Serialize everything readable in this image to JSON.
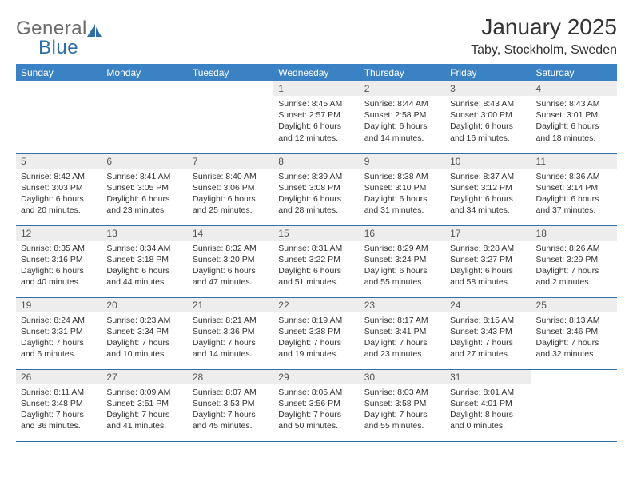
{
  "logo": {
    "part1": "General",
    "part2": "Blue"
  },
  "title": "January 2025",
  "location": "Taby, Stockholm, Sweden",
  "colors": {
    "header_bg": "#3b82c4",
    "header_text": "#ffffff",
    "daynum_bg": "#ededed",
    "rule": "#2f6fa8",
    "body_text": "#333333",
    "logo_gray": "#6b6b6b",
    "logo_blue": "#2f6fa8"
  },
  "font": {
    "family": "Arial",
    "cell_size_pt": 8,
    "daynum_size_pt": 9,
    "header_size_pt": 9,
    "title_size_pt": 21,
    "location_size_pt": 12
  },
  "day_headers": [
    "Sunday",
    "Monday",
    "Tuesday",
    "Wednesday",
    "Thursday",
    "Friday",
    "Saturday"
  ],
  "weeks": [
    [
      {
        "n": "",
        "sunrise": "",
        "sunset": "",
        "daylight": ""
      },
      {
        "n": "",
        "sunrise": "",
        "sunset": "",
        "daylight": ""
      },
      {
        "n": "",
        "sunrise": "",
        "sunset": "",
        "daylight": ""
      },
      {
        "n": "1",
        "sunrise": "Sunrise: 8:45 AM",
        "sunset": "Sunset: 2:57 PM",
        "daylight": "Daylight: 6 hours and 12 minutes."
      },
      {
        "n": "2",
        "sunrise": "Sunrise: 8:44 AM",
        "sunset": "Sunset: 2:58 PM",
        "daylight": "Daylight: 6 hours and 14 minutes."
      },
      {
        "n": "3",
        "sunrise": "Sunrise: 8:43 AM",
        "sunset": "Sunset: 3:00 PM",
        "daylight": "Daylight: 6 hours and 16 minutes."
      },
      {
        "n": "4",
        "sunrise": "Sunrise: 8:43 AM",
        "sunset": "Sunset: 3:01 PM",
        "daylight": "Daylight: 6 hours and 18 minutes."
      }
    ],
    [
      {
        "n": "5",
        "sunrise": "Sunrise: 8:42 AM",
        "sunset": "Sunset: 3:03 PM",
        "daylight": "Daylight: 6 hours and 20 minutes."
      },
      {
        "n": "6",
        "sunrise": "Sunrise: 8:41 AM",
        "sunset": "Sunset: 3:05 PM",
        "daylight": "Daylight: 6 hours and 23 minutes."
      },
      {
        "n": "7",
        "sunrise": "Sunrise: 8:40 AM",
        "sunset": "Sunset: 3:06 PM",
        "daylight": "Daylight: 6 hours and 25 minutes."
      },
      {
        "n": "8",
        "sunrise": "Sunrise: 8:39 AM",
        "sunset": "Sunset: 3:08 PM",
        "daylight": "Daylight: 6 hours and 28 minutes."
      },
      {
        "n": "9",
        "sunrise": "Sunrise: 8:38 AM",
        "sunset": "Sunset: 3:10 PM",
        "daylight": "Daylight: 6 hours and 31 minutes."
      },
      {
        "n": "10",
        "sunrise": "Sunrise: 8:37 AM",
        "sunset": "Sunset: 3:12 PM",
        "daylight": "Daylight: 6 hours and 34 minutes."
      },
      {
        "n": "11",
        "sunrise": "Sunrise: 8:36 AM",
        "sunset": "Sunset: 3:14 PM",
        "daylight": "Daylight: 6 hours and 37 minutes."
      }
    ],
    [
      {
        "n": "12",
        "sunrise": "Sunrise: 8:35 AM",
        "sunset": "Sunset: 3:16 PM",
        "daylight": "Daylight: 6 hours and 40 minutes."
      },
      {
        "n": "13",
        "sunrise": "Sunrise: 8:34 AM",
        "sunset": "Sunset: 3:18 PM",
        "daylight": "Daylight: 6 hours and 44 minutes."
      },
      {
        "n": "14",
        "sunrise": "Sunrise: 8:32 AM",
        "sunset": "Sunset: 3:20 PM",
        "daylight": "Daylight: 6 hours and 47 minutes."
      },
      {
        "n": "15",
        "sunrise": "Sunrise: 8:31 AM",
        "sunset": "Sunset: 3:22 PM",
        "daylight": "Daylight: 6 hours and 51 minutes."
      },
      {
        "n": "16",
        "sunrise": "Sunrise: 8:29 AM",
        "sunset": "Sunset: 3:24 PM",
        "daylight": "Daylight: 6 hours and 55 minutes."
      },
      {
        "n": "17",
        "sunrise": "Sunrise: 8:28 AM",
        "sunset": "Sunset: 3:27 PM",
        "daylight": "Daylight: 6 hours and 58 minutes."
      },
      {
        "n": "18",
        "sunrise": "Sunrise: 8:26 AM",
        "sunset": "Sunset: 3:29 PM",
        "daylight": "Daylight: 7 hours and 2 minutes."
      }
    ],
    [
      {
        "n": "19",
        "sunrise": "Sunrise: 8:24 AM",
        "sunset": "Sunset: 3:31 PM",
        "daylight": "Daylight: 7 hours and 6 minutes."
      },
      {
        "n": "20",
        "sunrise": "Sunrise: 8:23 AM",
        "sunset": "Sunset: 3:34 PM",
        "daylight": "Daylight: 7 hours and 10 minutes."
      },
      {
        "n": "21",
        "sunrise": "Sunrise: 8:21 AM",
        "sunset": "Sunset: 3:36 PM",
        "daylight": "Daylight: 7 hours and 14 minutes."
      },
      {
        "n": "22",
        "sunrise": "Sunrise: 8:19 AM",
        "sunset": "Sunset: 3:38 PM",
        "daylight": "Daylight: 7 hours and 19 minutes."
      },
      {
        "n": "23",
        "sunrise": "Sunrise: 8:17 AM",
        "sunset": "Sunset: 3:41 PM",
        "daylight": "Daylight: 7 hours and 23 minutes."
      },
      {
        "n": "24",
        "sunrise": "Sunrise: 8:15 AM",
        "sunset": "Sunset: 3:43 PM",
        "daylight": "Daylight: 7 hours and 27 minutes."
      },
      {
        "n": "25",
        "sunrise": "Sunrise: 8:13 AM",
        "sunset": "Sunset: 3:46 PM",
        "daylight": "Daylight: 7 hours and 32 minutes."
      }
    ],
    [
      {
        "n": "26",
        "sunrise": "Sunrise: 8:11 AM",
        "sunset": "Sunset: 3:48 PM",
        "daylight": "Daylight: 7 hours and 36 minutes."
      },
      {
        "n": "27",
        "sunrise": "Sunrise: 8:09 AM",
        "sunset": "Sunset: 3:51 PM",
        "daylight": "Daylight: 7 hours and 41 minutes."
      },
      {
        "n": "28",
        "sunrise": "Sunrise: 8:07 AM",
        "sunset": "Sunset: 3:53 PM",
        "daylight": "Daylight: 7 hours and 45 minutes."
      },
      {
        "n": "29",
        "sunrise": "Sunrise: 8:05 AM",
        "sunset": "Sunset: 3:56 PM",
        "daylight": "Daylight: 7 hours and 50 minutes."
      },
      {
        "n": "30",
        "sunrise": "Sunrise: 8:03 AM",
        "sunset": "Sunset: 3:58 PM",
        "daylight": "Daylight: 7 hours and 55 minutes."
      },
      {
        "n": "31",
        "sunrise": "Sunrise: 8:01 AM",
        "sunset": "Sunset: 4:01 PM",
        "daylight": "Daylight: 8 hours and 0 minutes."
      },
      {
        "n": "",
        "sunrise": "",
        "sunset": "",
        "daylight": ""
      }
    ]
  ]
}
